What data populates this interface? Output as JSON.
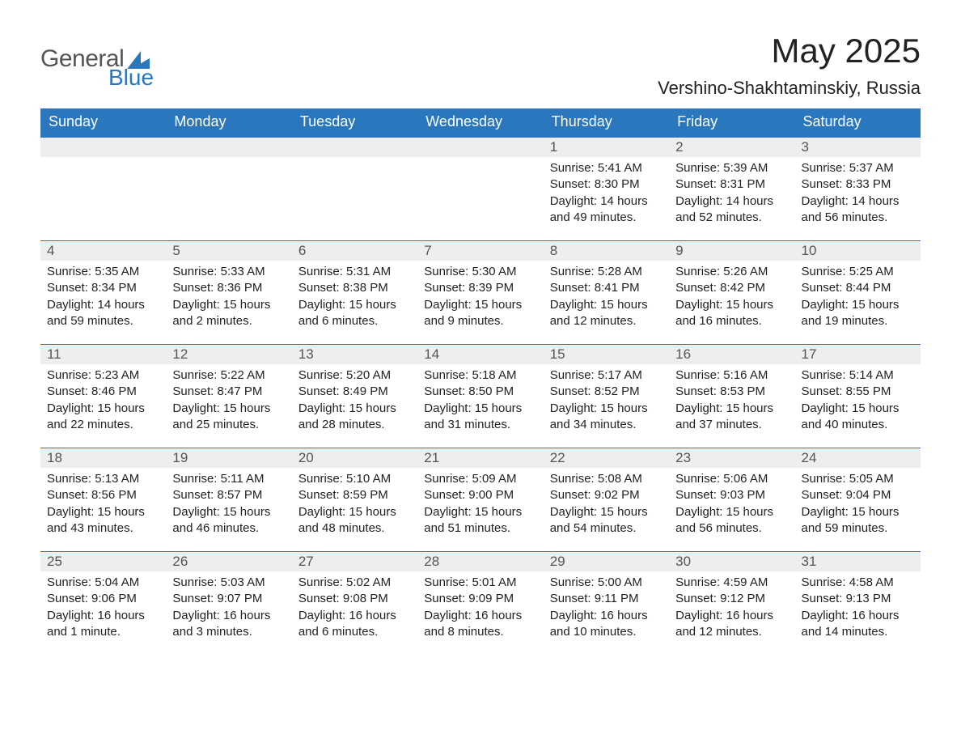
{
  "logo": {
    "text1": "General",
    "text2": "Blue"
  },
  "title": "May 2025",
  "location": "Vershino-Shakhtaminskiy, Russia",
  "weekday_labels": [
    "Sunday",
    "Monday",
    "Tuesday",
    "Wednesday",
    "Thursday",
    "Friday",
    "Saturday"
  ],
  "colors": {
    "header_bg": "#2a77bd",
    "header_text": "#ffffff",
    "day_head_bg": "#eeeeee",
    "day_head_text": "#555555",
    "body_bg": "#ffffff",
    "text": "#222222",
    "logo_accent": "#2a77bd"
  },
  "weeks": [
    [
      null,
      null,
      null,
      null,
      {
        "num": "1",
        "sunrise": "Sunrise: 5:41 AM",
        "sunset": "Sunset: 8:30 PM",
        "daylight1": "Daylight: 14 hours",
        "daylight2": "and 49 minutes."
      },
      {
        "num": "2",
        "sunrise": "Sunrise: 5:39 AM",
        "sunset": "Sunset: 8:31 PM",
        "daylight1": "Daylight: 14 hours",
        "daylight2": "and 52 minutes."
      },
      {
        "num": "3",
        "sunrise": "Sunrise: 5:37 AM",
        "sunset": "Sunset: 8:33 PM",
        "daylight1": "Daylight: 14 hours",
        "daylight2": "and 56 minutes."
      }
    ],
    [
      {
        "num": "4",
        "sunrise": "Sunrise: 5:35 AM",
        "sunset": "Sunset: 8:34 PM",
        "daylight1": "Daylight: 14 hours",
        "daylight2": "and 59 minutes."
      },
      {
        "num": "5",
        "sunrise": "Sunrise: 5:33 AM",
        "sunset": "Sunset: 8:36 PM",
        "daylight1": "Daylight: 15 hours",
        "daylight2": "and 2 minutes."
      },
      {
        "num": "6",
        "sunrise": "Sunrise: 5:31 AM",
        "sunset": "Sunset: 8:38 PM",
        "daylight1": "Daylight: 15 hours",
        "daylight2": "and 6 minutes."
      },
      {
        "num": "7",
        "sunrise": "Sunrise: 5:30 AM",
        "sunset": "Sunset: 8:39 PM",
        "daylight1": "Daylight: 15 hours",
        "daylight2": "and 9 minutes."
      },
      {
        "num": "8",
        "sunrise": "Sunrise: 5:28 AM",
        "sunset": "Sunset: 8:41 PM",
        "daylight1": "Daylight: 15 hours",
        "daylight2": "and 12 minutes."
      },
      {
        "num": "9",
        "sunrise": "Sunrise: 5:26 AM",
        "sunset": "Sunset: 8:42 PM",
        "daylight1": "Daylight: 15 hours",
        "daylight2": "and 16 minutes."
      },
      {
        "num": "10",
        "sunrise": "Sunrise: 5:25 AM",
        "sunset": "Sunset: 8:44 PM",
        "daylight1": "Daylight: 15 hours",
        "daylight2": "and 19 minutes."
      }
    ],
    [
      {
        "num": "11",
        "sunrise": "Sunrise: 5:23 AM",
        "sunset": "Sunset: 8:46 PM",
        "daylight1": "Daylight: 15 hours",
        "daylight2": "and 22 minutes."
      },
      {
        "num": "12",
        "sunrise": "Sunrise: 5:22 AM",
        "sunset": "Sunset: 8:47 PM",
        "daylight1": "Daylight: 15 hours",
        "daylight2": "and 25 minutes."
      },
      {
        "num": "13",
        "sunrise": "Sunrise: 5:20 AM",
        "sunset": "Sunset: 8:49 PM",
        "daylight1": "Daylight: 15 hours",
        "daylight2": "and 28 minutes."
      },
      {
        "num": "14",
        "sunrise": "Sunrise: 5:18 AM",
        "sunset": "Sunset: 8:50 PM",
        "daylight1": "Daylight: 15 hours",
        "daylight2": "and 31 minutes."
      },
      {
        "num": "15",
        "sunrise": "Sunrise: 5:17 AM",
        "sunset": "Sunset: 8:52 PM",
        "daylight1": "Daylight: 15 hours",
        "daylight2": "and 34 minutes."
      },
      {
        "num": "16",
        "sunrise": "Sunrise: 5:16 AM",
        "sunset": "Sunset: 8:53 PM",
        "daylight1": "Daylight: 15 hours",
        "daylight2": "and 37 minutes."
      },
      {
        "num": "17",
        "sunrise": "Sunrise: 5:14 AM",
        "sunset": "Sunset: 8:55 PM",
        "daylight1": "Daylight: 15 hours",
        "daylight2": "and 40 minutes."
      }
    ],
    [
      {
        "num": "18",
        "sunrise": "Sunrise: 5:13 AM",
        "sunset": "Sunset: 8:56 PM",
        "daylight1": "Daylight: 15 hours",
        "daylight2": "and 43 minutes."
      },
      {
        "num": "19",
        "sunrise": "Sunrise: 5:11 AM",
        "sunset": "Sunset: 8:57 PM",
        "daylight1": "Daylight: 15 hours",
        "daylight2": "and 46 minutes."
      },
      {
        "num": "20",
        "sunrise": "Sunrise: 5:10 AM",
        "sunset": "Sunset: 8:59 PM",
        "daylight1": "Daylight: 15 hours",
        "daylight2": "and 48 minutes."
      },
      {
        "num": "21",
        "sunrise": "Sunrise: 5:09 AM",
        "sunset": "Sunset: 9:00 PM",
        "daylight1": "Daylight: 15 hours",
        "daylight2": "and 51 minutes."
      },
      {
        "num": "22",
        "sunrise": "Sunrise: 5:08 AM",
        "sunset": "Sunset: 9:02 PM",
        "daylight1": "Daylight: 15 hours",
        "daylight2": "and 54 minutes."
      },
      {
        "num": "23",
        "sunrise": "Sunrise: 5:06 AM",
        "sunset": "Sunset: 9:03 PM",
        "daylight1": "Daylight: 15 hours",
        "daylight2": "and 56 minutes."
      },
      {
        "num": "24",
        "sunrise": "Sunrise: 5:05 AM",
        "sunset": "Sunset: 9:04 PM",
        "daylight1": "Daylight: 15 hours",
        "daylight2": "and 59 minutes."
      }
    ],
    [
      {
        "num": "25",
        "sunrise": "Sunrise: 5:04 AM",
        "sunset": "Sunset: 9:06 PM",
        "daylight1": "Daylight: 16 hours",
        "daylight2": "and 1 minute."
      },
      {
        "num": "26",
        "sunrise": "Sunrise: 5:03 AM",
        "sunset": "Sunset: 9:07 PM",
        "daylight1": "Daylight: 16 hours",
        "daylight2": "and 3 minutes."
      },
      {
        "num": "27",
        "sunrise": "Sunrise: 5:02 AM",
        "sunset": "Sunset: 9:08 PM",
        "daylight1": "Daylight: 16 hours",
        "daylight2": "and 6 minutes."
      },
      {
        "num": "28",
        "sunrise": "Sunrise: 5:01 AM",
        "sunset": "Sunset: 9:09 PM",
        "daylight1": "Daylight: 16 hours",
        "daylight2": "and 8 minutes."
      },
      {
        "num": "29",
        "sunrise": "Sunrise: 5:00 AM",
        "sunset": "Sunset: 9:11 PM",
        "daylight1": "Daylight: 16 hours",
        "daylight2": "and 10 minutes."
      },
      {
        "num": "30",
        "sunrise": "Sunrise: 4:59 AM",
        "sunset": "Sunset: 9:12 PM",
        "daylight1": "Daylight: 16 hours",
        "daylight2": "and 12 minutes."
      },
      {
        "num": "31",
        "sunrise": "Sunrise: 4:58 AM",
        "sunset": "Sunset: 9:13 PM",
        "daylight1": "Daylight: 16 hours",
        "daylight2": "and 14 minutes."
      }
    ]
  ]
}
